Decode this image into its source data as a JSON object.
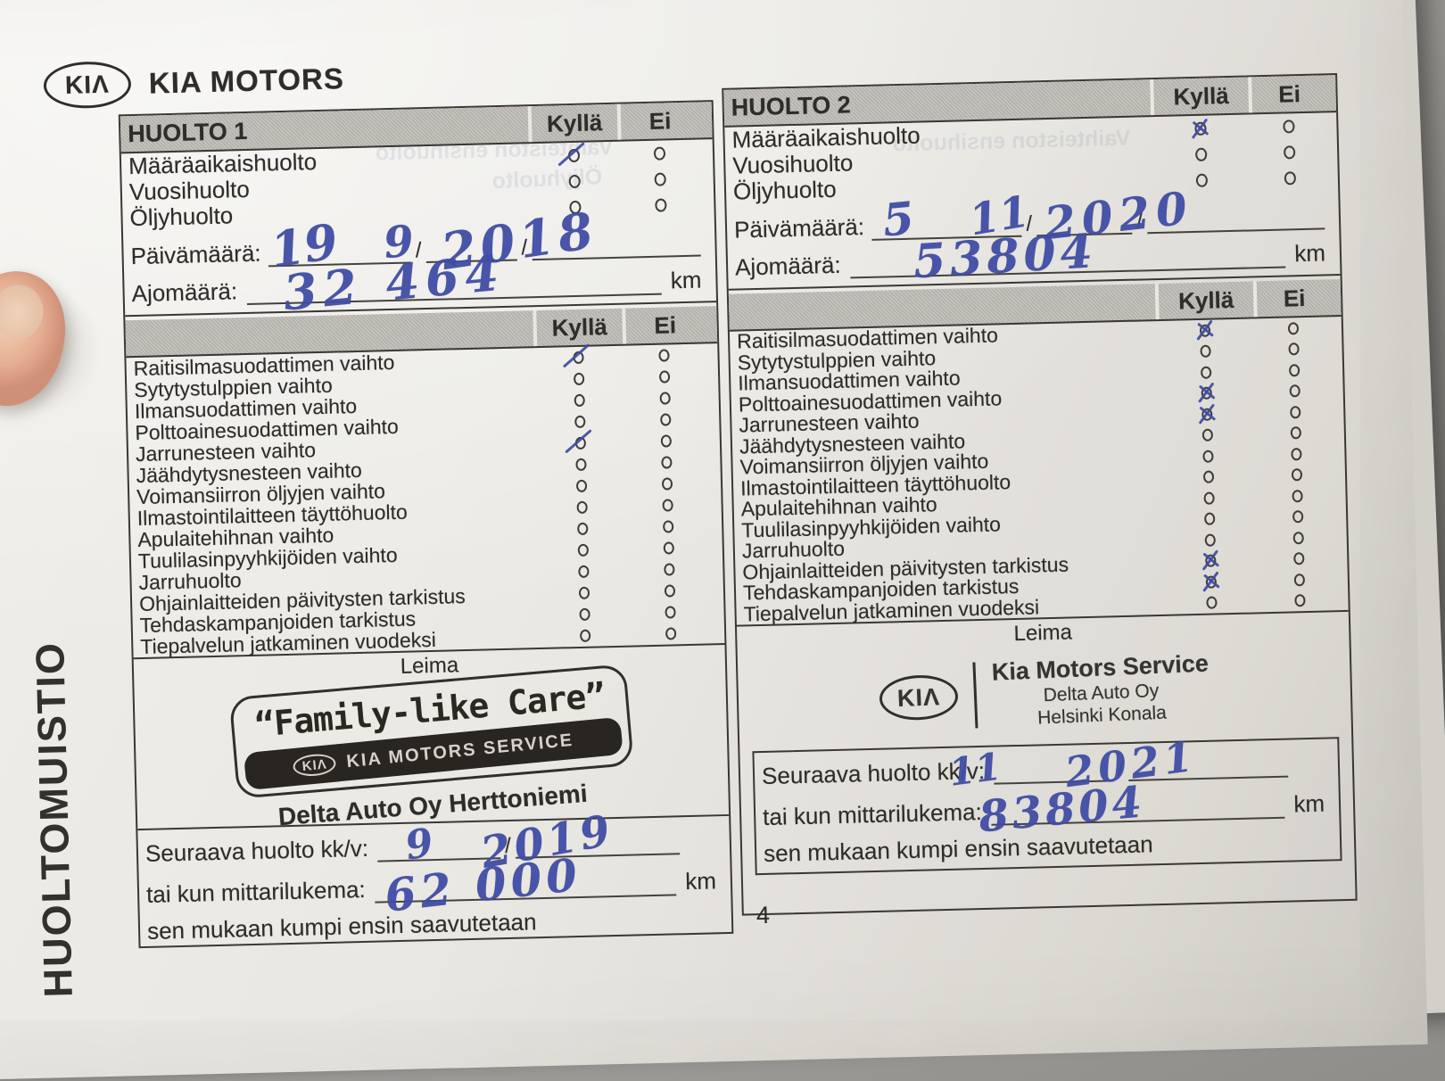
{
  "photo": {
    "side_label": "HUOLTOMUISTIO",
    "page_number": "4"
  },
  "brand": {
    "logo": "KIΛ",
    "name": "KIA MOTORS"
  },
  "columns_labels": {
    "yes": "Kyllä",
    "no": "Ei"
  },
  "field_labels": {
    "date": "Päivämäärä:",
    "mileage": "Ajomäärä:",
    "km": "km",
    "slash": "/",
    "stamp": "Leima",
    "next_service": "Seuraava huolto kk/v:",
    "or_mileage": "tai kun mittarilukema:",
    "whichever_first": "sen mukaan kumpi ensin saavutetaan"
  },
  "service_rows": [
    "Määräaikaishuolto",
    "Vuosihuolto",
    "Öljyhuolto"
  ],
  "checklist_rows": [
    "Raitisilmasuodattimen vaihto",
    "Sytytystulppien vaihto",
    "Ilmansuodattimen vaihto",
    "Polttoainesuodattimen vaihto",
    "Jarrunesteen vaihto",
    "Jäähdytysnesteen vaihto",
    "Voimansiirron öljyjen vaihto",
    "Ilmastointilaitteen täyttöhuolto",
    "Apulaitehihnan vaihto",
    "Tuulilasinpyyhkijöiden vaihto",
    "Jarruhuolto",
    "Ohjainlaitteiden päivitysten tarkistus",
    "Tehdaskampanjoiden tarkistus",
    "Tiepalvelun jatkaminen vuodeksi"
  ],
  "huolto1": {
    "title": "HUOLTO 1",
    "mark_style": "slash",
    "service_checked_yes": [
      0
    ],
    "checklist_checked_yes": [
      0,
      4
    ],
    "handwriting": {
      "date_day": "19",
      "date_month": "9",
      "date_year": "2018",
      "mileage": "32 464",
      "next_month": "9",
      "next_year": "2019",
      "next_mileage": "62 000"
    },
    "stamp": {
      "tagline": "“Family-like Care”",
      "band_logo": "KIΛ",
      "band": "KIA MOTORS SERVICE",
      "dealer": "Delta Auto Oy Herttoniemi"
    }
  },
  "huolto2": {
    "title": "HUOLTO 2",
    "mark_style": "cross",
    "service_checked_yes": [
      0
    ],
    "checklist_checked_yes": [
      0,
      3,
      4,
      11,
      12
    ],
    "handwriting": {
      "date_day": "5",
      "date_month": "11",
      "date_year": "2020",
      "mileage": "53804",
      "next_month": "11",
      "next_year": "2021",
      "next_mileage": "83804"
    },
    "stamp": {
      "logo": "KIΛ",
      "line1": "Kia Motors Service",
      "line2": "Delta Auto Oy",
      "line3": "Helsinki Konala"
    }
  },
  "bleed_through": {
    "frag1": "Vaihteiston ensihuolto",
    "frag2": "Öljyhuolto"
  }
}
